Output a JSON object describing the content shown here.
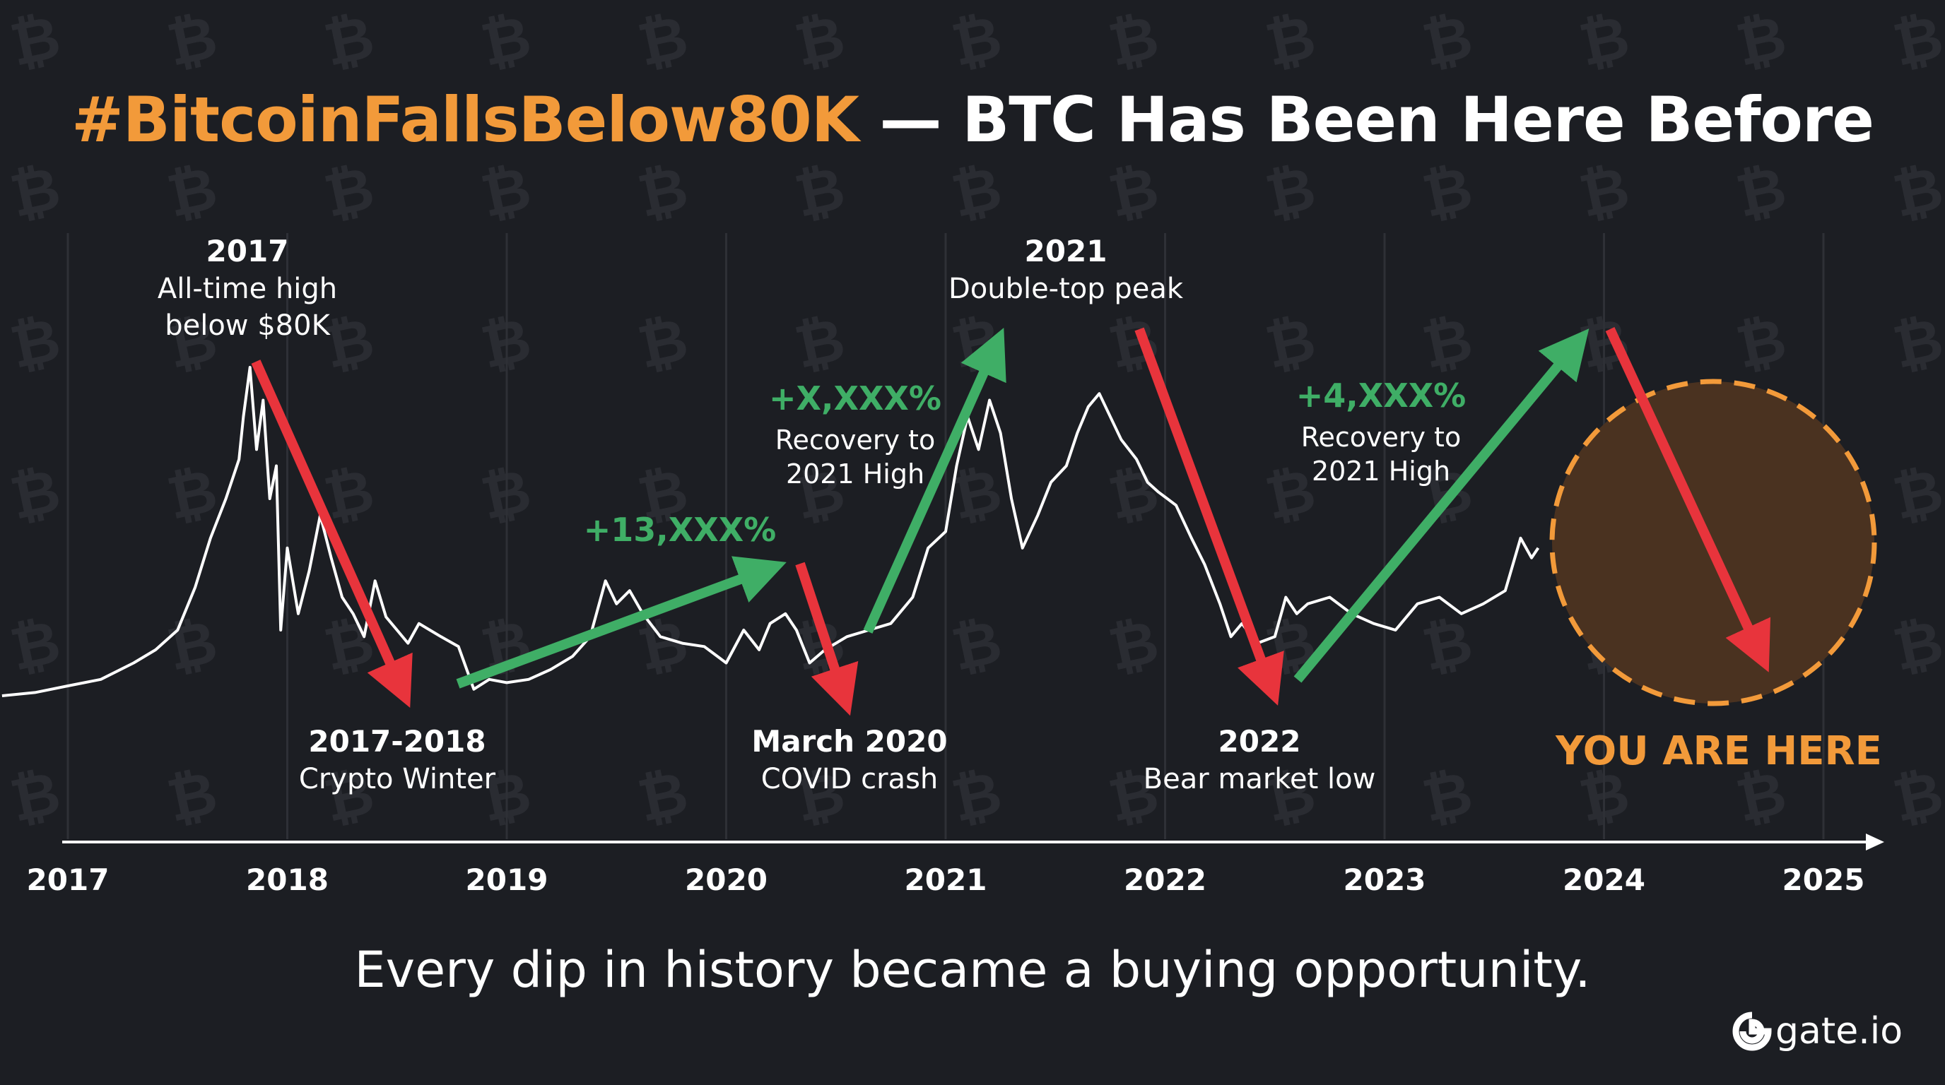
{
  "title": {
    "hashtag": "#BitcoinFallsBelow80K",
    "rest": " — BTC Has Been Here Before"
  },
  "subtitle": "Every dip in history became a buying opportunity.",
  "brand": {
    "name": "gate.io",
    "icon": "gate-logo-icon"
  },
  "watermark_icon": "bitcoin-icon",
  "colors": {
    "background": "#1c1e23",
    "accent_orange": "#f29a3a",
    "up_green": "#3fae66",
    "down_red": "#e8343c",
    "price_line": "#ffffff",
    "gridline": "#2e3036"
  },
  "annotations": {
    "peak_2017": {
      "year": "2017",
      "line1": "All-time high",
      "line2": "below $80K"
    },
    "winter": {
      "year": "2017-2018",
      "line1": "Crypto Winter"
    },
    "gain_13": {
      "pct": "+13,XXX%"
    },
    "gain_x": {
      "pct": "+X,XXX%",
      "line1": "Recovery to",
      "line2": "2021 High"
    },
    "covid": {
      "year": "March 2020",
      "line1": "COVID crash"
    },
    "peak_2021": {
      "year": "2021",
      "line1": "Double-top peak"
    },
    "low_2022": {
      "year": "2022",
      "line1": "Bear market low"
    },
    "gain_4": {
      "pct": "+4,XXX%",
      "line1": "Recovery to",
      "line2": "2021 High"
    },
    "you_are_here": "YOU ARE HERE"
  },
  "chart_data": {
    "type": "line",
    "xlabel": "",
    "ylabel": "",
    "x_ticks": [
      "2017",
      "2018",
      "2019",
      "2020",
      "2021",
      "2022",
      "2023",
      "2024",
      "2025"
    ],
    "xlim": [
      2016.7,
      2025.3
    ],
    "ylim": [
      0,
      100
    ],
    "y_axis_shown": false,
    "grid": "vertical only",
    "series": [
      {
        "points": [
          [
            2016.7,
            0
          ],
          [
            2016.85,
            1
          ],
          [
            2017.0,
            3
          ],
          [
            2017.15,
            5
          ],
          [
            2017.3,
            10
          ],
          [
            2017.4,
            14
          ],
          [
            2017.5,
            20
          ],
          [
            2017.58,
            33
          ],
          [
            2017.65,
            48
          ],
          [
            2017.72,
            60
          ],
          [
            2017.78,
            72
          ],
          [
            2017.8,
            85
          ],
          [
            2017.83,
            100
          ],
          [
            2017.86,
            75
          ],
          [
            2017.89,
            90
          ],
          [
            2017.92,
            60
          ],
          [
            2017.95,
            70
          ],
          [
            2017.97,
            20
          ],
          [
            2018.0,
            45
          ],
          [
            2018.05,
            25
          ],
          [
            2018.1,
            38
          ],
          [
            2018.15,
            55
          ],
          [
            2018.2,
            42
          ],
          [
            2018.25,
            30
          ],
          [
            2018.3,
            25
          ],
          [
            2018.35,
            18
          ],
          [
            2018.4,
            35
          ],
          [
            2018.45,
            24
          ],
          [
            2018.5,
            20
          ],
          [
            2018.55,
            16
          ],
          [
            2018.6,
            22
          ],
          [
            2018.65,
            20
          ],
          [
            2018.7,
            18
          ],
          [
            2018.78,
            15
          ],
          [
            2018.85,
            2
          ],
          [
            2018.92,
            5
          ],
          [
            2019.0,
            4
          ],
          [
            2019.1,
            5
          ],
          [
            2019.2,
            8
          ],
          [
            2019.3,
            12
          ],
          [
            2019.38,
            18
          ],
          [
            2019.45,
            35
          ],
          [
            2019.5,
            28
          ],
          [
            2019.56,
            32
          ],
          [
            2019.62,
            25
          ],
          [
            2019.7,
            18
          ],
          [
            2019.8,
            16
          ],
          [
            2019.9,
            15
          ],
          [
            2020.0,
            10
          ],
          [
            2020.08,
            20
          ],
          [
            2020.15,
            14
          ],
          [
            2020.2,
            22
          ],
          [
            2020.27,
            25
          ],
          [
            2020.32,
            20
          ],
          [
            2020.38,
            10
          ],
          [
            2020.45,
            14
          ],
          [
            2020.55,
            18
          ],
          [
            2020.65,
            20
          ],
          [
            2020.75,
            22
          ],
          [
            2020.85,
            30
          ],
          [
            2020.92,
            45
          ],
          [
            2021.0,
            50
          ],
          [
            2021.05,
            70
          ],
          [
            2021.1,
            85
          ],
          [
            2021.15,
            75
          ],
          [
            2021.2,
            90
          ],
          [
            2021.25,
            80
          ],
          [
            2021.3,
            60
          ],
          [
            2021.35,
            45
          ],
          [
            2021.42,
            55
          ],
          [
            2021.48,
            65
          ],
          [
            2021.55,
            70
          ],
          [
            2021.6,
            80
          ],
          [
            2021.65,
            88
          ],
          [
            2021.7,
            92
          ],
          [
            2021.75,
            85
          ],
          [
            2021.8,
            78
          ],
          [
            2021.87,
            72
          ],
          [
            2021.92,
            65
          ],
          [
            2021.97,
            62
          ],
          [
            2022.05,
            58
          ],
          [
            2022.12,
            48
          ],
          [
            2022.18,
            40
          ],
          [
            2022.25,
            28
          ],
          [
            2022.3,
            18
          ],
          [
            2022.35,
            22
          ],
          [
            2022.42,
            16
          ],
          [
            2022.5,
            18
          ],
          [
            2022.55,
            30
          ],
          [
            2022.6,
            25
          ],
          [
            2022.65,
            28
          ],
          [
            2022.75,
            30
          ],
          [
            2022.85,
            25
          ],
          [
            2022.95,
            22
          ],
          [
            2023.05,
            20
          ],
          [
            2023.15,
            28
          ],
          [
            2023.25,
            30
          ],
          [
            2023.35,
            25
          ],
          [
            2023.45,
            28
          ],
          [
            2023.55,
            32
          ],
          [
            2023.62,
            48
          ],
          [
            2023.67,
            42
          ],
          [
            2023.7,
            45
          ]
        ]
      }
    ]
  }
}
